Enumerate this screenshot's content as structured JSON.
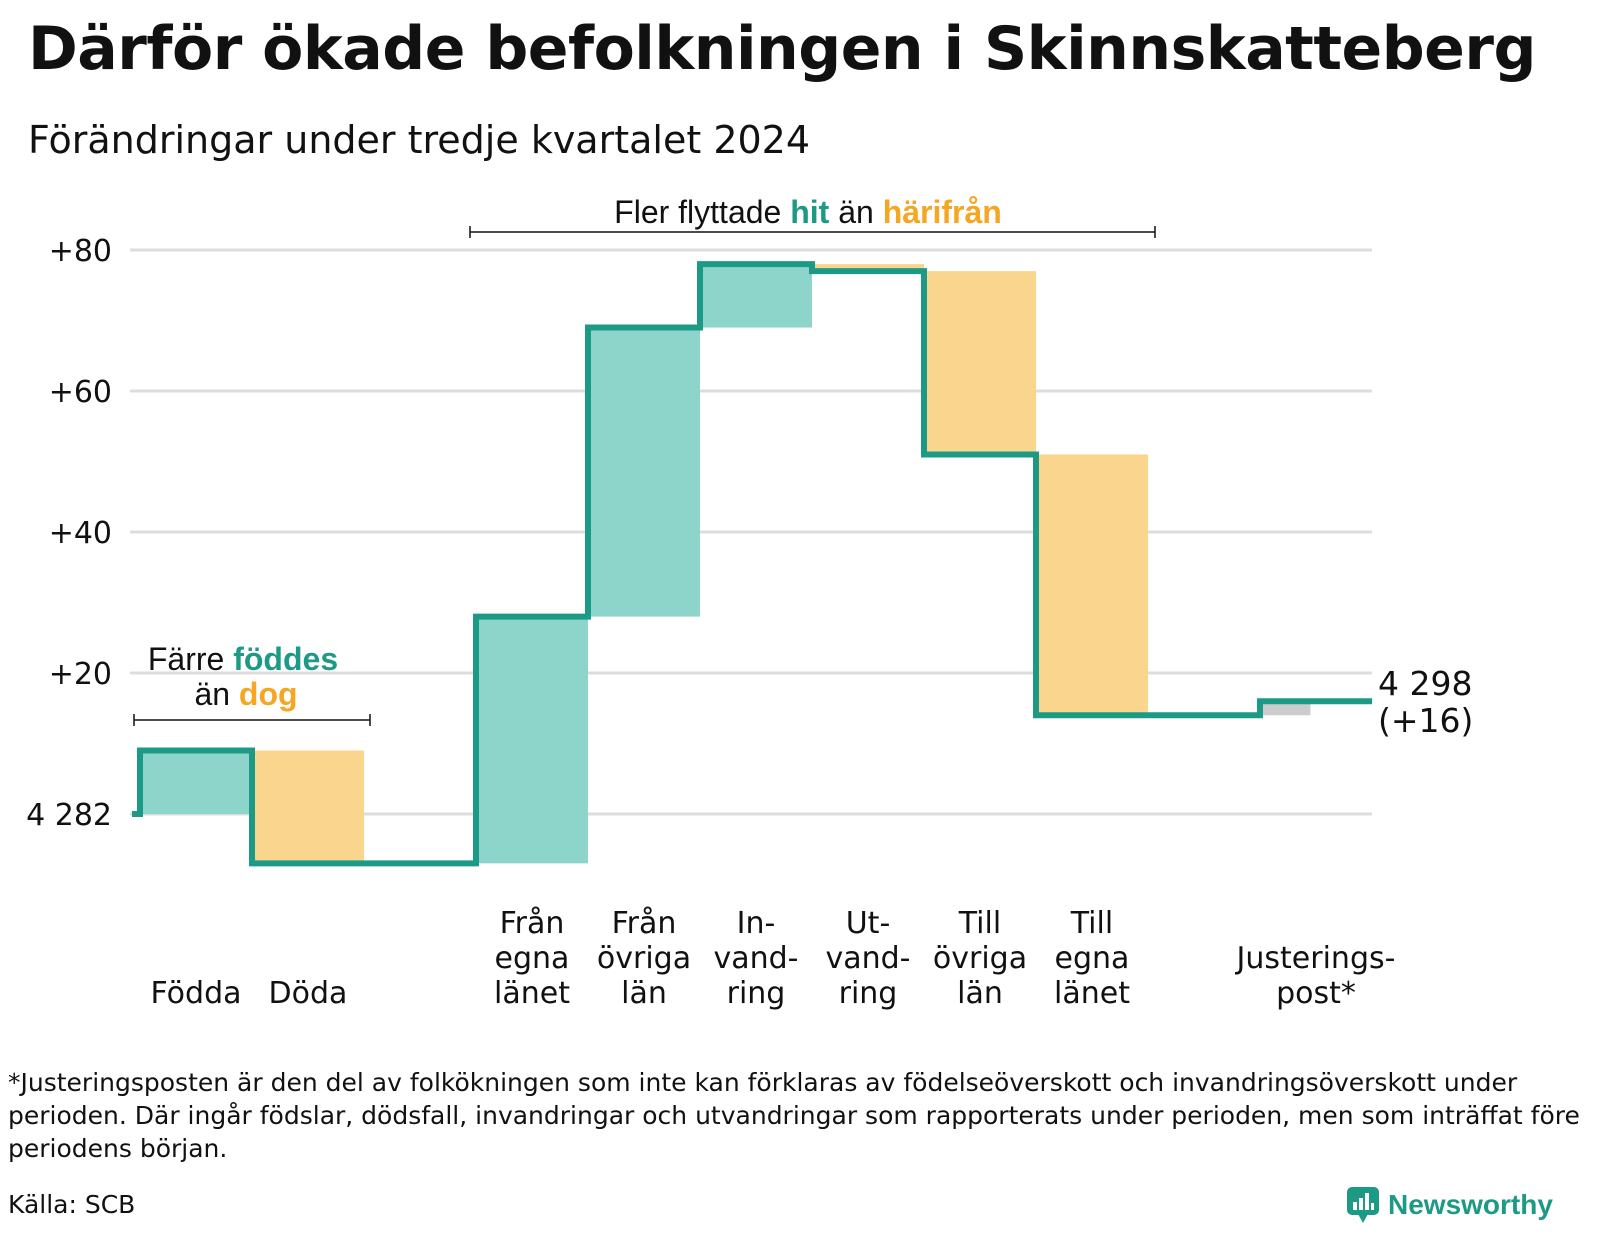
{
  "title": "Därför ökade befolkningen i Skinnskatteberg",
  "subtitle": "Förändringar under tredje kvartalet 2024",
  "chart_data": {
    "type": "waterfall",
    "start": {
      "label": "4 282",
      "value": 4282
    },
    "end": {
      "label": "4 298",
      "sublabel": "(+16)",
      "value": 4298
    },
    "ylim": [
      -7,
      82
    ],
    "yticks": [
      {
        "value": 80,
        "label": "+80"
      },
      {
        "value": 60,
        "label": "+60"
      },
      {
        "value": 40,
        "label": "+40"
      },
      {
        "value": 20,
        "label": "+20"
      },
      {
        "value": 0,
        "label": "4 282"
      }
    ],
    "steps": [
      {
        "label": "Födda",
        "lines": [
          "Födda"
        ],
        "delta": 9,
        "kind": "positive"
      },
      {
        "label": "Döda",
        "lines": [
          "Döda"
        ],
        "delta": -16,
        "kind": "negative"
      },
      {
        "label": "",
        "lines": [],
        "delta": 0,
        "kind": "gap"
      },
      {
        "label": "Från egna länet",
        "lines": [
          "Från",
          "egna",
          "länet"
        ],
        "delta": 35,
        "kind": "positive"
      },
      {
        "label": "Från övriga län",
        "lines": [
          "Från",
          "övriga",
          "län"
        ],
        "delta": 41,
        "kind": "positive"
      },
      {
        "label": "In-vandring",
        "lines": [
          "In-",
          "vand-",
          "ring"
        ],
        "delta": 9,
        "kind": "positive"
      },
      {
        "label": "Ut-vandring",
        "lines": [
          "Ut-",
          "vand-",
          "ring"
        ],
        "delta": -1,
        "kind": "negative"
      },
      {
        "label": "Till övriga län",
        "lines": [
          "Till",
          "övriga",
          "län"
        ],
        "delta": -26,
        "kind": "negative"
      },
      {
        "label": "Till egna länet",
        "lines": [
          "Till",
          "egna",
          "länet"
        ],
        "delta": -37,
        "kind": "negative"
      },
      {
        "label": "",
        "lines": [],
        "delta": 0,
        "kind": "gap"
      },
      {
        "label": "Justerings-post*",
        "lines": [
          "Justerings-",
          "post*"
        ],
        "delta": 2,
        "kind": "adjustment"
      }
    ],
    "annotations": [
      {
        "id": "births",
        "line1_plain": "Färre ",
        "line1_strong": "föddes",
        "line2_plain": "än ",
        "line2_strong": "dog"
      },
      {
        "id": "moves",
        "plain1": "Fler flyttade ",
        "strong1": "hit",
        "plain2": " än ",
        "strong2": "härifrån"
      }
    ],
    "colors": {
      "line": "#1d9a86",
      "positive": "#8dd4cb",
      "negative": "#fad58e",
      "adjustment": "#cccccc",
      "grid": "#dddddd",
      "highlight_positive": "#1d9a86",
      "highlight_negative": "#f5a623"
    }
  },
  "footnote": "*Justeringsposten är den del av folkökningen som inte kan förklaras av födelseöverskott och invandringsöverskott under perioden. Där ingår födslar, dödsfall, invandringar och utvandringar som rapporterats under perioden, men som inträffat före periodens början.",
  "source": "Källa: SCB",
  "brand": {
    "name": "Newsworthy",
    "icon": "newsworthy-chart-bubble-icon",
    "color": "#1d9a86"
  }
}
